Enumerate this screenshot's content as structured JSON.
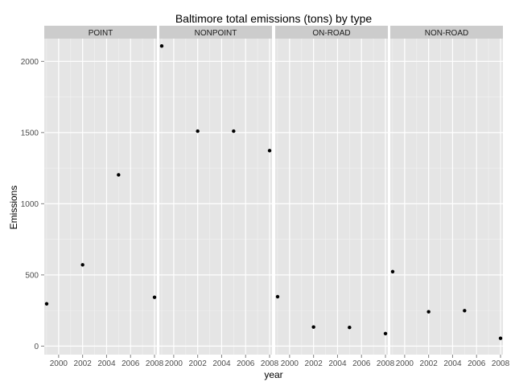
{
  "chart_data": {
    "type": "scatter",
    "title": "Baltimore total emissions (tons) by type",
    "xlabel": "year",
    "ylabel": "Emissions",
    "x_ticks": [
      2000,
      2002,
      2004,
      2006,
      2008
    ],
    "y_ticks": [
      0,
      500,
      1000,
      1500,
      2000
    ],
    "xlim": [
      1998.8,
      2008.2
    ],
    "ylim": [
      -60,
      2160
    ],
    "grid": true,
    "facets": [
      {
        "label": "POINT",
        "points": [
          {
            "x": 1999,
            "y": 297
          },
          {
            "x": 2002,
            "y": 571
          },
          {
            "x": 2005,
            "y": 1203
          },
          {
            "x": 2008,
            "y": 343
          }
        ]
      },
      {
        "label": "NONPOINT",
        "points": [
          {
            "x": 1999,
            "y": 2108
          },
          {
            "x": 2002,
            "y": 1510
          },
          {
            "x": 2005,
            "y": 1510
          },
          {
            "x": 2008,
            "y": 1373
          }
        ]
      },
      {
        "label": "ON-ROAD",
        "points": [
          {
            "x": 1999,
            "y": 347
          },
          {
            "x": 2002,
            "y": 134
          },
          {
            "x": 2005,
            "y": 131
          },
          {
            "x": 2008,
            "y": 88
          }
        ]
      },
      {
        "label": "NON-ROAD",
        "points": [
          {
            "x": 1999,
            "y": 523
          },
          {
            "x": 2002,
            "y": 241
          },
          {
            "x": 2005,
            "y": 249
          },
          {
            "x": 2008,
            "y": 55
          }
        ]
      }
    ],
    "colors": {
      "panel_bg": "#e5e5e5",
      "strip_bg": "#cccccc",
      "grid_major": "#ffffff",
      "grid_minor": "#f2f2f2",
      "point": "#000000",
      "tick": "#7f7f7f"
    }
  }
}
